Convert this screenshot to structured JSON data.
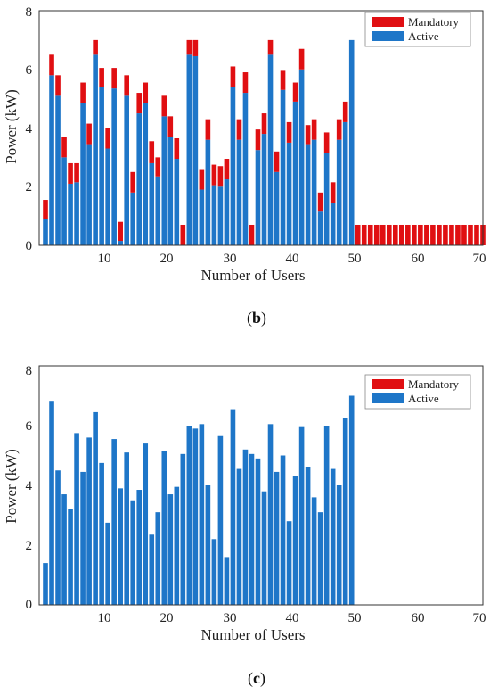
{
  "colors": {
    "mandatory": "#e00f12",
    "active": "#1e76c8",
    "axis": "#333333"
  },
  "figures": [
    {
      "caption_open": "(",
      "caption_letter": "b",
      "caption_close": ")",
      "xlabel": "Number of Users",
      "ylabel": "Power (kW)",
      "legend": [
        "Mandatory",
        "Active"
      ],
      "xticks": [
        "10",
        "20",
        "30",
        "40",
        "50",
        "60",
        "70"
      ],
      "yticks": [
        "0",
        "2",
        "4",
        "6",
        "8"
      ]
    },
    {
      "caption_open": "(",
      "caption_letter": "c",
      "caption_close": ")",
      "xlabel": "Number of Users",
      "ylabel": "Power (kW)",
      "legend": [
        "Mandatory",
        "Active"
      ],
      "xticks": [
        "10",
        "20",
        "30",
        "40",
        "50",
        "60",
        "70"
      ],
      "yticks": [
        "0",
        "2",
        "4",
        "6",
        "8"
      ]
    }
  ],
  "chart_data": [
    {
      "type": "bar",
      "stacked": true,
      "xlabel": "Number of Users",
      "ylabel": "Power (kW)",
      "xlim": [
        0,
        71
      ],
      "ylim": [
        0,
        8
      ],
      "legend_position": "top-right",
      "x": [
        1,
        2,
        3,
        4,
        5,
        6,
        7,
        8,
        9,
        10,
        11,
        12,
        13,
        14,
        15,
        16,
        17,
        18,
        19,
        20,
        21,
        22,
        23,
        24,
        25,
        26,
        27,
        28,
        29,
        30,
        31,
        32,
        33,
        34,
        35,
        36,
        37,
        38,
        39,
        40,
        41,
        42,
        43,
        44,
        45,
        46,
        47,
        48,
        49,
        50,
        51,
        52,
        53,
        54,
        55,
        56,
        57,
        58,
        59,
        60,
        61,
        62,
        63,
        64,
        65,
        66,
        67,
        68,
        69,
        70,
        71
      ],
      "series": [
        {
          "name": "Active",
          "values": [
            0.9,
            5.8,
            5.1,
            3.0,
            2.1,
            2.15,
            4.85,
            3.45,
            6.5,
            5.4,
            3.3,
            5.35,
            0.15,
            5.1,
            1.8,
            4.5,
            4.85,
            2.8,
            2.35,
            4.4,
            3.7,
            2.95,
            0,
            6.5,
            6.45,
            1.9,
            3.6,
            2.05,
            2.0,
            2.25,
            5.4,
            3.6,
            5.2,
            0,
            3.25,
            3.8,
            6.5,
            2.5,
            5.3,
            3.5,
            4.9,
            6.0,
            3.45,
            3.6,
            1.15,
            3.15,
            1.45,
            3.6,
            4.2,
            7.0,
            0,
            0,
            0,
            0,
            0,
            0,
            0,
            0,
            0,
            0,
            0,
            0,
            0,
            0,
            0,
            0,
            0,
            0,
            0,
            0,
            0
          ]
        },
        {
          "name": "Mandatory",
          "values": [
            0.65,
            0.7,
            0.7,
            0.7,
            0.7,
            0.65,
            0.7,
            0.7,
            0.5,
            0.65,
            0.7,
            0.7,
            0.65,
            0.7,
            0.7,
            0.7,
            0.7,
            0.75,
            0.65,
            0.7,
            0.7,
            0.7,
            0.7,
            0.5,
            0.55,
            0.7,
            0.7,
            0.7,
            0.7,
            0.7,
            0.7,
            0.7,
            0.7,
            0.7,
            0.7,
            0.7,
            0.5,
            0.7,
            0.65,
            0.7,
            0.65,
            0.7,
            0.65,
            0.7,
            0.65,
            0.7,
            0.7,
            0.7,
            0.7,
            0,
            0.7,
            0.7,
            0.7,
            0.7,
            0.7,
            0.7,
            0.7,
            0.7,
            0.7,
            0.7,
            0.7,
            0.7,
            0.7,
            0.7,
            0.7,
            0.7,
            0.7,
            0.7,
            0.7,
            0.7,
            0.7
          ]
        }
      ]
    },
    {
      "type": "bar",
      "stacked": true,
      "xlabel": "Number of Users",
      "ylabel": "Power (kW)",
      "xlim": [
        0,
        71
      ],
      "ylim": [
        0,
        8
      ],
      "legend_position": "top-right",
      "x": [
        1,
        2,
        3,
        4,
        5,
        6,
        7,
        8,
        9,
        10,
        11,
        12,
        13,
        14,
        15,
        16,
        17,
        18,
        19,
        20,
        21,
        22,
        23,
        24,
        25,
        26,
        27,
        28,
        29,
        30,
        31,
        32,
        33,
        34,
        35,
        36,
        37,
        38,
        39,
        40,
        41,
        42,
        43,
        44,
        45,
        46,
        47,
        48,
        49,
        50
      ],
      "series": [
        {
          "name": "Active",
          "values": [
            1.4,
            6.8,
            4.5,
            3.7,
            3.2,
            5.75,
            4.45,
            5.6,
            6.45,
            4.75,
            2.75,
            5.55,
            3.9,
            5.1,
            3.5,
            3.85,
            5.4,
            2.35,
            3.1,
            5.15,
            3.7,
            3.95,
            5.05,
            6.0,
            5.9,
            6.05,
            4.0,
            2.2,
            5.65,
            1.6,
            6.55,
            4.55,
            5.2,
            5.05,
            4.9,
            3.8,
            6.05,
            4.45,
            5.0,
            2.8,
            4.3,
            5.95,
            4.6,
            3.6,
            3.1,
            6.0,
            4.55,
            4.0,
            6.25,
            7.0
          ]
        },
        {
          "name": "Mandatory",
          "values": [
            0,
            0,
            0,
            0,
            0,
            0,
            0,
            0,
            0,
            0,
            0,
            0,
            0,
            0,
            0,
            0,
            0,
            0,
            0,
            0,
            0,
            0,
            0,
            0,
            0,
            0,
            0,
            0,
            0,
            0,
            0,
            0,
            0,
            0,
            0,
            0,
            0,
            0,
            0,
            0,
            0,
            0,
            0,
            0,
            0,
            0,
            0,
            0,
            0,
            0
          ]
        }
      ]
    }
  ]
}
